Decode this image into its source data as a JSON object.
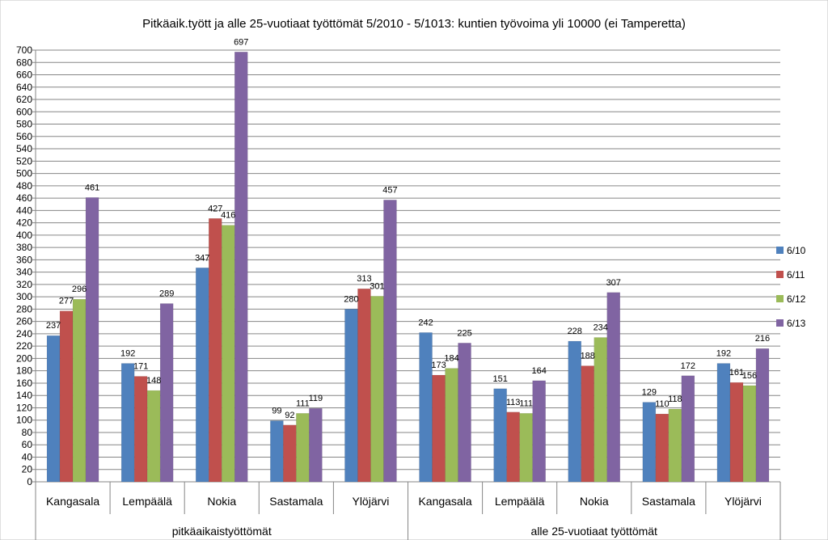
{
  "chart_data": {
    "type": "bar",
    "title": "Pitkäaik.tyött ja alle 25-vuotiaat työttömät 5/2010 - 5/1013: kuntien työvoima yli 10000 (ei Tamperetta)",
    "xlabel": "",
    "ylabel": "",
    "ylim": [
      0,
      700
    ],
    "ytick_step": 20,
    "grid": true,
    "legend_position": "right",
    "groups": [
      {
        "label": "pitkäaikaistyöttömät",
        "categories": [
          "Kangasala",
          "Lempäälä",
          "Nokia",
          "Sastamala",
          "Ylöjärvi"
        ]
      },
      {
        "label": "alle 25-vuotiaat työttömät",
        "categories": [
          "Kangasala",
          "Lempäälä",
          "Nokia",
          "Sastamala",
          "Ylöjärvi"
        ]
      }
    ],
    "series": [
      {
        "name": "6/10",
        "color": "#4f81bd",
        "values": [
          237,
          192,
          347,
          99,
          280,
          242,
          151,
          228,
          129,
          192
        ]
      },
      {
        "name": "6/11",
        "color": "#c0504d",
        "values": [
          277,
          171,
          427,
          92,
          313,
          173,
          113,
          188,
          110,
          161
        ]
      },
      {
        "name": "6/12",
        "color": "#9bbb59",
        "values": [
          296,
          148,
          416,
          111,
          301,
          184,
          111,
          234,
          118,
          156
        ]
      },
      {
        "name": "6/13",
        "color": "#8064a2",
        "values": [
          461,
          289,
          697,
          119,
          457,
          225,
          164,
          307,
          172,
          216
        ]
      }
    ]
  }
}
